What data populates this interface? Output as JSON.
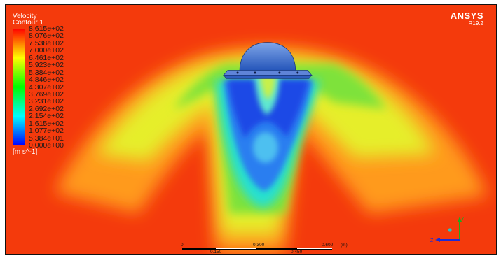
{
  "header": {
    "title": "Velocity",
    "subtitle": "Contour 1"
  },
  "legend": {
    "ticks": [
      "8.615e+02",
      "8.076e+02",
      "7.538e+02",
      "7.000e+02",
      "6.461e+02",
      "5.923e+02",
      "5.384e+02",
      "4.846e+02",
      "4.307e+02",
      "3.769e+02",
      "3.231e+02",
      "2.692e+02",
      "2.154e+02",
      "1.615e+02",
      "1.077e+02",
      "5.384e+01",
      "0.000e+00"
    ],
    "units": "[m s^-1]"
  },
  "logo": {
    "name": "ANSYS",
    "version": "R19.2"
  },
  "scale": {
    "top_labels": [
      "0",
      "0.300",
      "0.600",
      "(m)"
    ],
    "bottom_labels": [
      "0.150",
      "0.450"
    ]
  },
  "axes": {
    "y": "Y",
    "z": "Z"
  },
  "colors": {
    "background": "#f43a0c",
    "legend_stops": [
      "#0000ff",
      "#007fff",
      "#00ffff",
      "#00ff7f",
      "#00ff00",
      "#7fff00",
      "#ffff00",
      "#ff7f00",
      "#ff0000"
    ]
  }
}
